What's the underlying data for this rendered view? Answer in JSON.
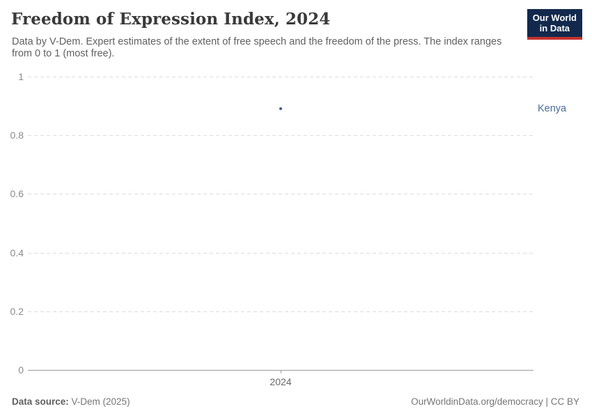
{
  "header": {
    "title": "Freedom of Expression Index, 2024",
    "subtitle": "Data by V-Dem. Expert estimates of the extent of free speech and the freedom of the press. The index ranges from 0 to 1 (most free).",
    "logo": {
      "line1": "Our World",
      "line2": "in Data",
      "bg_color": "#12294d",
      "accent_color": "#c4322f"
    }
  },
  "chart_data": {
    "type": "scatter",
    "title": "Freedom of Expression Index, 2024",
    "x": [
      2024
    ],
    "xtick_labels": [
      "2024"
    ],
    "series": [
      {
        "name": "Kenya",
        "values": [
          0.89
        ],
        "color": "#4c6a9c",
        "point_color": "#3f5d94"
      }
    ],
    "xlabel": "",
    "ylabel": "",
    "ylim": [
      0,
      1
    ],
    "yticks": [
      0,
      0.2,
      0.4,
      0.6,
      0.8,
      1
    ],
    "ytick_labels": [
      "0",
      "0.2",
      "0.4",
      "0.6",
      "0.8",
      "1"
    ],
    "grid": "horizontal-dashed",
    "legend": "entity-label-right"
  },
  "footer": {
    "source_label": "Data source:",
    "source_value": " V-Dem (2025)",
    "credit": "OurWorldinData.org/democracy | CC BY"
  }
}
